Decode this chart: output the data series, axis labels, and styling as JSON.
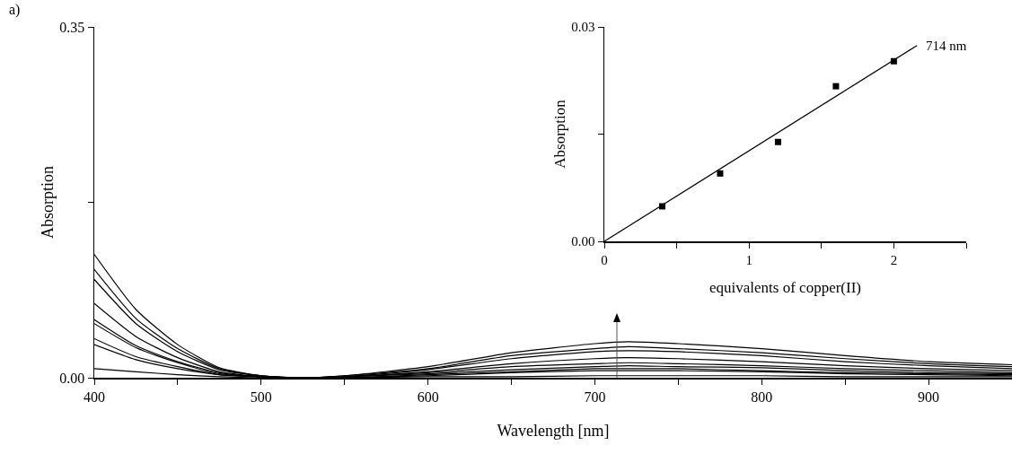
{
  "chart_data": [
    {
      "type": "line",
      "xlabel": "Wavelength [nm]",
      "ylabel": "Absorption",
      "annotations": [
        "a)"
      ],
      "x": [
        400,
        425,
        450,
        475,
        500,
        525,
        550,
        600,
        650,
        700,
        720,
        750,
        800,
        850,
        900,
        950
      ],
      "series": [
        {
          "color": "#000000",
          "values": [
            0.123,
            0.068,
            0.033,
            0.01,
            0.002,
            0.0,
            0.002,
            0.011,
            0.025,
            0.034,
            0.036,
            0.034,
            0.029,
            0.022,
            0.016,
            0.013
          ]
        },
        {
          "color": "#000000",
          "values": [
            0.108,
            0.059,
            0.029,
            0.009,
            0.002,
            0.0,
            0.002,
            0.009,
            0.022,
            0.029,
            0.031,
            0.029,
            0.025,
            0.019,
            0.014,
            0.011
          ]
        },
        {
          "color": "#000000",
          "values": [
            0.098,
            0.054,
            0.026,
            0.008,
            0.002,
            0.0,
            0.001,
            0.008,
            0.019,
            0.026,
            0.027,
            0.026,
            0.022,
            0.016,
            0.012,
            0.009
          ]
        },
        {
          "color": "#000000",
          "values": [
            0.074,
            0.041,
            0.02,
            0.006,
            0.001,
            0.0,
            0.001,
            0.006,
            0.014,
            0.019,
            0.02,
            0.019,
            0.016,
            0.012,
            0.009,
            0.007
          ]
        },
        {
          "color": "#000000",
          "values": [
            0.058,
            0.032,
            0.016,
            0.005,
            0.001,
            0.0,
            0.001,
            0.005,
            0.011,
            0.014,
            0.015,
            0.014,
            0.012,
            0.009,
            0.007,
            0.005
          ]
        },
        {
          "color": "#000000",
          "values": [
            0.054,
            0.03,
            0.015,
            0.004,
            0.001,
            0.0,
            0.001,
            0.004,
            0.008,
            0.011,
            0.012,
            0.011,
            0.01,
            0.007,
            0.005,
            0.004
          ]
        },
        {
          "color": "#000000",
          "values": [
            0.039,
            0.021,
            0.011,
            0.003,
            0.001,
            0.0,
            0.0,
            0.003,
            0.006,
            0.009,
            0.009,
            0.009,
            0.007,
            0.005,
            0.004,
            0.003
          ]
        },
        {
          "color": "#000000",
          "values": [
            0.033,
            0.018,
            0.009,
            0.003,
            0.001,
            0.0,
            0.0,
            0.002,
            0.005,
            0.007,
            0.007,
            0.007,
            0.006,
            0.004,
            0.003,
            0.002
          ]
        },
        {
          "color": "#000000",
          "values": [
            0.009,
            0.006,
            0.003,
            0.001,
            0.0,
            0.0,
            0.0,
            0.001,
            0.001,
            0.002,
            0.002,
            0.002,
            0.002,
            0.001,
            0.001,
            0.001
          ]
        }
      ],
      "xlim": [
        400,
        950
      ],
      "xticks": [
        400,
        {
          "value": 450,
          "label": null
        },
        500,
        {
          "value": 550,
          "label": null
        },
        600,
        {
          "value": 650,
          "label": null
        },
        700,
        {
          "value": 750,
          "label": null
        },
        800,
        {
          "value": 850,
          "label": null
        },
        900
      ],
      "ylim": [
        0,
        0.35
      ],
      "yticks": [
        {
          "value": 0,
          "label": "0.00"
        },
        {
          "value": 0.175,
          "label": null
        },
        0.35
      ]
    },
    {
      "type": "scatter",
      "xlabel": "equivalents of copper(II)",
      "ylabel": "Absorption",
      "x": [
        0.4,
        0.8,
        1.2,
        1.6,
        2.0
      ],
      "series": [
        {
          "color": "#000000",
          "marker": "square",
          "values": [
            0.0049,
            0.0095,
            0.0139,
            0.0217,
            0.0252
          ]
        },
        {
          "name": "714 nm",
          "type": "line",
          "marker": "none",
          "color": "#000000",
          "x": [
            0,
            2.16
          ],
          "values": [
            0,
            0.0274
          ]
        }
      ],
      "xlim": [
        0,
        2.5
      ],
      "xticks": [
        0,
        {
          "value": 0.5,
          "label": null
        },
        1,
        {
          "value": 1.5,
          "label": null
        },
        2,
        {
          "value": 2.5,
          "label": null
        }
      ],
      "ylim": [
        0,
        0.03
      ],
      "yticks": [
        {
          "value": 0,
          "label": "0.00"
        },
        {
          "value": 0.015,
          "label": null
        },
        0.03
      ]
    }
  ]
}
